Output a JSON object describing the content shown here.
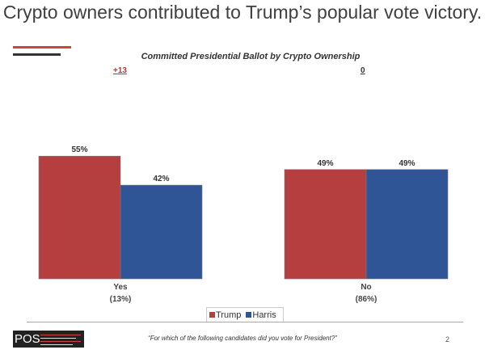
{
  "header": {
    "title": "Crypto owners contributed to Trump’s popular vote victory."
  },
  "chart_data": {
    "type": "bar",
    "title": "Committed Presidential Ballot by Crypto Ownership",
    "categories": [
      "Yes\n(13%)",
      "No\n(86%)"
    ],
    "category_lines": [
      [
        "Yes",
        "(13%)"
      ],
      [
        "No",
        "(86%)"
      ]
    ],
    "margins": [
      "+13",
      "0"
    ],
    "series": [
      {
        "name": "Trump",
        "values": [
          55,
          49
        ],
        "labels": [
          "55%",
          "49%"
        ],
        "color": "#b53f3f"
      },
      {
        "name": "Harris",
        "values": [
          42,
          49
        ],
        "labels": [
          "42%",
          "49%"
        ],
        "color": "#2f5597"
      }
    ],
    "ylim": [
      0,
      60
    ],
    "grid": false,
    "legend": "bottom-center"
  },
  "footer": {
    "logo": "POS",
    "question": "“For which of the following candidates did you vote for President?”",
    "page_number": "2"
  }
}
